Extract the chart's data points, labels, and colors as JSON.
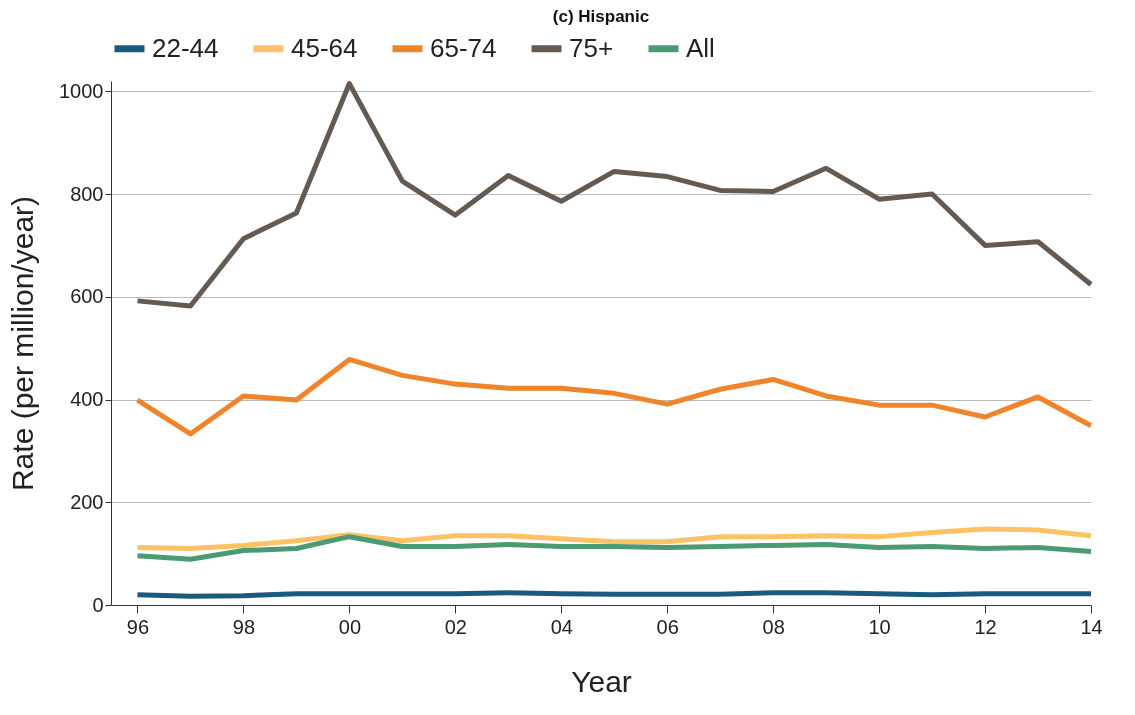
{
  "chart_data": {
    "type": "line",
    "title": "(c)   Hispanic",
    "xlabel": "Year",
    "ylabel": "Rate (per million/year)",
    "x": [
      1996,
      1997,
      1998,
      1999,
      2000,
      2001,
      2002,
      2003,
      2004,
      2005,
      2006,
      2007,
      2008,
      2009,
      2010,
      2011,
      2012,
      2013,
      2014
    ],
    "series": [
      {
        "name": "22-44",
        "color": "#1a5a80",
        "values": [
          20,
          17,
          18,
          22,
          22,
          22,
          22,
          24,
          22,
          21,
          21,
          21,
          24,
          24,
          22,
          20,
          22,
          22,
          22
        ]
      },
      {
        "name": "45-64",
        "color": "#fdc265",
        "values": [
          112,
          110,
          116,
          125,
          137,
          125,
          135,
          135,
          129,
          123,
          123,
          133,
          133,
          135,
          133,
          141,
          148,
          146,
          135
        ]
      },
      {
        "name": "65-74",
        "color": "#f0842a",
        "values": [
          399,
          333,
          407,
          399,
          478,
          447,
          430,
          422,
          422,
          412,
          391,
          420,
          439,
          407,
          389,
          389,
          366,
          405,
          349
        ]
      },
      {
        "name": "75+",
        "color": "#645a51",
        "values": [
          592,
          582,
          713,
          763,
          1015,
          825,
          759,
          836,
          786,
          844,
          834,
          807,
          805,
          850,
          790,
          800,
          700,
          707,
          624
        ]
      },
      {
        "name": "All",
        "color": "#4b9a72",
        "values": [
          96,
          89,
          106,
          110,
          133,
          114,
          114,
          118,
          114,
          114,
          112,
          114,
          116,
          118,
          112,
          114,
          110,
          112,
          104
        ]
      }
    ],
    "xlim": [
      1995.5,
      2014
    ],
    "xticks": [
      {
        "value": 1996,
        "label": "96"
      },
      {
        "value": 1998,
        "label": "98"
      },
      {
        "value": 2000,
        "label": "00"
      },
      {
        "value": 2002,
        "label": "02"
      },
      {
        "value": 2004,
        "label": "04"
      },
      {
        "value": 2006,
        "label": "06"
      },
      {
        "value": 2008,
        "label": "08"
      },
      {
        "value": 2010,
        "label": "10"
      },
      {
        "value": 2012,
        "label": "12"
      },
      {
        "value": 2014,
        "label": "14"
      }
    ],
    "ylim": [
      0,
      1020
    ],
    "yticks": [
      0,
      200,
      400,
      600,
      800,
      1000
    ],
    "grid": "y",
    "legend": "top",
    "marker": "none",
    "line_style": "solid"
  }
}
